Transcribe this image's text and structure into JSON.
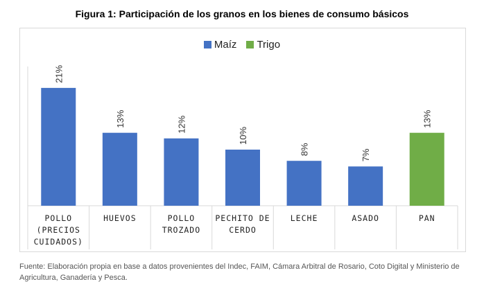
{
  "figure_title": "Figura 1: Participación de los granos en los bienes de consumo básicos",
  "source_note": "Fuente: Elaboración propia en base a datos provenientes del Indec, FAIM, Cámara Arbitral de Rosario, Coto Digital y Ministerio de Agricultura, Ganadería y Pesca.",
  "colors": {
    "maiz": "#4472c4",
    "trigo": "#70ad47"
  },
  "chart_data": {
    "type": "bar",
    "title": "Figura 1: Participación de los granos en los bienes de consumo básicos",
    "xlabel": "",
    "ylabel": "",
    "ylim": [
      0,
      25
    ],
    "grid": false,
    "legend_position": "top-center",
    "legend": [
      {
        "name": "Maíz",
        "color": "#4472c4"
      },
      {
        "name": "Trigo",
        "color": "#70ad47"
      }
    ],
    "categories": [
      [
        "POLLO",
        "(PRECIOS",
        "CUIDADOS)"
      ],
      [
        "HUEVOS"
      ],
      [
        "POLLO",
        "TROZADO"
      ],
      [
        "PECHITO DE",
        "CERDO"
      ],
      [
        "LECHE"
      ],
      [
        "ASADO"
      ],
      [
        "PAN"
      ]
    ],
    "values": [
      21,
      13,
      12,
      10,
      8,
      7,
      13
    ],
    "labels": [
      "21%",
      "13%",
      "12%",
      "10%",
      "8%",
      "7%",
      "13%"
    ],
    "series_of_bar": [
      "Maíz",
      "Maíz",
      "Maíz",
      "Maíz",
      "Maíz",
      "Maíz",
      "Trigo"
    ]
  }
}
